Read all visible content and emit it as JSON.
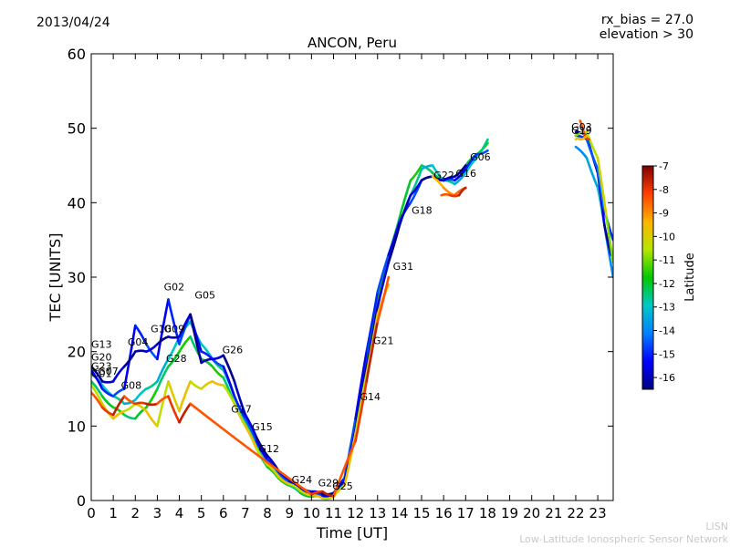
{
  "header": {
    "date": "2013/04/24",
    "rx_bias": "rx_bias = 27.0",
    "elevation": "elevation > 30"
  },
  "chart_data": {
    "type": "scatter",
    "title": "ANCON, Peru",
    "xlabel": "Time [UT]",
    "ylabel": "TEC [UNITS]",
    "xlim": [
      0,
      23.7
    ],
    "ylim": [
      0,
      60
    ],
    "xticks": [
      "0",
      "1",
      "2",
      "3",
      "4",
      "5",
      "6",
      "7",
      "8",
      "9",
      "10",
      "11",
      "12",
      "13",
      "14",
      "15",
      "16",
      "17",
      "18",
      "19",
      "20",
      "21",
      "22",
      "23"
    ],
    "yticks": [
      "0",
      "10",
      "20",
      "30",
      "40",
      "50",
      "60"
    ],
    "grid": false,
    "colorbar": {
      "label": "Latitude",
      "range": [
        -16.5,
        -7
      ],
      "ticks": [
        "-7",
        "-8",
        "-9",
        "-10",
        "-11",
        "-12",
        "-13",
        "-14",
        "-15",
        "-16"
      ],
      "colors": [
        "#00007f",
        "#0000ff",
        "#007fff",
        "#00c8c8",
        "#00c800",
        "#b4e600",
        "#ffb400",
        "#ff4000",
        "#7f0000"
      ]
    },
    "satellite_labels": [
      {
        "name": "G13",
        "x": 0.0,
        "y": 20.5
      },
      {
        "name": "G20",
        "x": 0.0,
        "y": 18.8
      },
      {
        "name": "G23",
        "x": 0.0,
        "y": 17.6
      },
      {
        "name": "G07",
        "x": 0.3,
        "y": 16.9
      },
      {
        "name": "G01",
        "x": 0.0,
        "y": 16.6
      },
      {
        "name": "G08",
        "x": 1.35,
        "y": 15.0
      },
      {
        "name": "G04",
        "x": 1.65,
        "y": 20.8
      },
      {
        "name": "G10",
        "x": 2.7,
        "y": 22.6
      },
      {
        "name": "G09",
        "x": 3.3,
        "y": 22.6
      },
      {
        "name": "G02",
        "x": 3.3,
        "y": 28.2
      },
      {
        "name": "G28",
        "x": 3.4,
        "y": 18.6
      },
      {
        "name": "G05",
        "x": 4.7,
        "y": 27.1
      },
      {
        "name": "G26",
        "x": 5.95,
        "y": 19.8
      },
      {
        "name": "G17",
        "x": 6.35,
        "y": 11.8
      },
      {
        "name": "G15",
        "x": 7.3,
        "y": 9.4
      },
      {
        "name": "G12",
        "x": 7.6,
        "y": 6.5
      },
      {
        "name": "G24",
        "x": 9.1,
        "y": 2.3
      },
      {
        "name": "G29",
        "x": 10.3,
        "y": 1.9
      },
      {
        "name": "G25",
        "x": 10.95,
        "y": 1.5
      },
      {
        "name": "G14",
        "x": 12.2,
        "y": 13.5
      },
      {
        "name": "G21",
        "x": 12.8,
        "y": 21.0
      },
      {
        "name": "G31",
        "x": 13.7,
        "y": 31.0
      },
      {
        "name": "G18",
        "x": 14.55,
        "y": 38.5
      },
      {
        "name": "G22",
        "x": 15.55,
        "y": 43.2
      },
      {
        "name": "G16",
        "x": 16.55,
        "y": 43.5
      },
      {
        "name": "G06",
        "x": 17.2,
        "y": 45.7
      },
      {
        "name": "G03",
        "x": 21.8,
        "y": 49.7
      },
      {
        "name": "G19",
        "x": 21.8,
        "y": 49.2
      }
    ],
    "series": [
      {
        "lat": -12.0,
        "x": [
          0,
          0.5,
          1,
          1.5,
          2,
          2.5,
          3,
          3.5,
          4,
          4.5,
          5,
          5.5,
          6,
          6.5,
          7,
          7.5,
          8,
          8.5,
          9,
          9.5,
          10,
          10.5,
          11,
          11.5,
          12,
          12.5,
          13,
          13.5,
          14,
          14.5,
          15,
          15.5,
          16,
          16.5,
          17,
          17.5,
          18
        ],
        "y": [
          16,
          14,
          12.5,
          11.5,
          11,
          12.5,
          15,
          18,
          20,
          22,
          19,
          18,
          16.5,
          13,
          10,
          7,
          4.5,
          3,
          2,
          1,
          0.5,
          0.5,
          0.8,
          3,
          11,
          19,
          27,
          33,
          38,
          43,
          45,
          44,
          43,
          43.5,
          45,
          46.5,
          48
        ]
      },
      {
        "lat": -13.0,
        "x": [
          0,
          0.5,
          1,
          1.5,
          2,
          2.5,
          3,
          3.5,
          4,
          4.5,
          5,
          5.5,
          6,
          6.5,
          7,
          7.5,
          8,
          8.5,
          9,
          9.5,
          10,
          10.5,
          11,
          11.5,
          12,
          12.5,
          13,
          13.5,
          14,
          14.5,
          15,
          15.5,
          16,
          16.5,
          17,
          17.5,
          18
        ],
        "y": [
          17,
          15.5,
          14,
          13,
          13.5,
          15,
          16,
          19,
          22,
          24,
          21,
          19,
          17.5,
          14,
          10.5,
          7.5,
          5,
          3.5,
          2.5,
          1.5,
          0.8,
          0.3,
          0.5,
          2.5,
          10,
          18,
          26,
          32,
          37,
          41,
          44.5,
          45,
          43,
          42.5,
          44,
          46,
          48.5
        ]
      },
      {
        "lat": -15.0,
        "x": [
          0,
          0.5,
          1,
          1.5,
          2,
          2.5,
          3,
          3.5,
          4,
          4.5,
          5,
          5.5,
          6,
          6.5,
          7,
          7.5,
          8,
          8.5,
          9,
          9.5,
          10,
          10.5,
          11,
          11.5,
          12,
          12.5,
          13,
          13.5,
          14,
          14.5,
          15,
          15.5,
          16,
          16.5,
          17,
          17.5,
          18
        ],
        "y": [
          17.5,
          15,
          14,
          15,
          23.5,
          21,
          19,
          27,
          21,
          25,
          20,
          19,
          18,
          14,
          11,
          8,
          5.5,
          3.8,
          2.5,
          1.6,
          1,
          0.6,
          0.8,
          3,
          11,
          20,
          28,
          33,
          37.5,
          40,
          43,
          43.5,
          43,
          43,
          44.5,
          46.5,
          47
        ]
      },
      {
        "lat": -16.0,
        "x": [
          0,
          0.5,
          1,
          1.5,
          2,
          2.5,
          3,
          3.5,
          4,
          4.5,
          5,
          5.5,
          6,
          6.5,
          7,
          7.5,
          8,
          8.5,
          9,
          9.5,
          10,
          10.5,
          11,
          11.5,
          12,
          12.5,
          13,
          13.5,
          14,
          14.5,
          15,
          15.5,
          16,
          16.5,
          17
        ],
        "y": [
          18,
          16,
          16,
          18,
          20,
          20,
          21,
          22,
          22,
          25,
          18.5,
          19,
          19.5,
          16,
          11.5,
          8.5,
          6,
          4,
          2.8,
          1.8,
          1.2,
          0.9,
          1,
          2.5,
          9.5,
          18,
          26,
          32,
          37,
          41,
          43,
          43.5,
          43,
          43.5,
          45
        ]
      },
      {
        "lat": -10.0,
        "x": [
          0,
          0.5,
          1,
          1.5,
          2,
          2.5,
          3,
          3.5,
          4,
          4.5,
          5,
          5.5,
          6,
          6.5,
          7,
          7.5,
          8,
          8.5,
          9,
          9.5,
          10,
          10.5,
          11,
          11.5,
          12,
          12.5,
          13,
          13.5
        ],
        "y": [
          15.5,
          13,
          11,
          12,
          13,
          12,
          10,
          16,
          12,
          16,
          15,
          16,
          15.5,
          13,
          10,
          7,
          4.8,
          3.2,
          2.2,
          1.3,
          0.7,
          0.3,
          0.5,
          2,
          9,
          17,
          25,
          29
        ]
      },
      {
        "lat": -8.0,
        "x": [
          0,
          0.5,
          1,
          1.5,
          2,
          2.5,
          3,
          3.5,
          4,
          4.5,
          10,
          10.5,
          11,
          12,
          12.5,
          13,
          13.5
        ],
        "y": [
          14.5,
          12.5,
          11.5,
          14,
          13,
          13,
          13,
          14,
          10.5,
          13,
          0.8,
          1.2,
          0.6,
          8,
          16,
          24,
          30
        ]
      },
      {
        "lat": -9.0,
        "x": [
          15.5,
          16,
          16.5,
          17
        ],
        "y": [
          43.5,
          42,
          41,
          42
        ]
      },
      {
        "lat": -8.0,
        "x": [
          15.9,
          16.3,
          16.7,
          17
        ],
        "y": [
          41,
          41,
          41,
          42
        ]
      },
      {
        "lat": -13.5,
        "x": [
          22,
          22.5,
          23,
          23.3,
          23.7
        ],
        "y": [
          47.5,
          46,
          42,
          37,
          30
        ]
      },
      {
        "lat": -16.0,
        "x": [
          22,
          22.5,
          23,
          23.3,
          23.6
        ],
        "y": [
          49.5,
          49,
          44,
          37,
          33
        ]
      },
      {
        "lat": -14.5,
        "x": [
          22,
          22.5,
          23,
          23.3,
          23.7
        ],
        "y": [
          49,
          48.5,
          44.5,
          39,
          35
        ]
      },
      {
        "lat": -10.5,
        "x": [
          22,
          22.5,
          23,
          23.4,
          23.7
        ],
        "y": [
          49,
          49.5,
          46,
          38,
          32
        ]
      },
      {
        "lat": -8.0,
        "x": [
          22.2,
          22.4,
          22.6
        ],
        "y": [
          51,
          49,
          48.5
        ]
      },
      {
        "lat": -9.5,
        "x": [
          22,
          22.2,
          22.5
        ],
        "y": [
          48.5,
          48.5,
          49
        ]
      }
    ]
  },
  "footer": {
    "line1": "LISN",
    "line2": "Low-Latitude Ionospheric Sensor Network"
  }
}
